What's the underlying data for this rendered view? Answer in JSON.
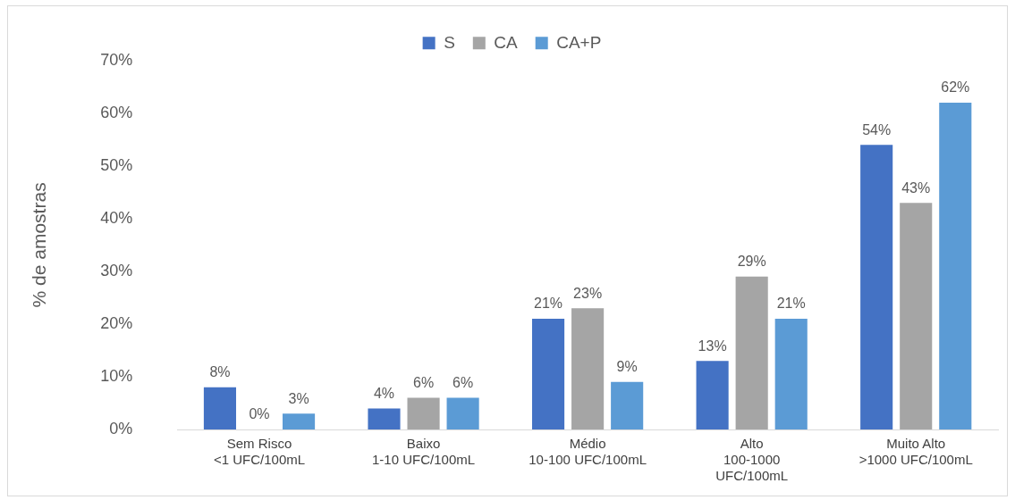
{
  "chart_data": {
    "type": "bar",
    "ylabel": "% de amostras",
    "categories": [
      "Sem Risco\n<1 UFC/100mL",
      "Baixo\n1-10 UFC/100mL",
      "Médio\n10-100 UFC/100mL",
      "Alto\n100-1000\nUFC/100mL",
      "Muito Alto\n>1000 UFC/100mL"
    ],
    "series": [
      {
        "name": "S",
        "color": "#4472c4",
        "values": [
          8,
          4,
          21,
          13,
          54
        ],
        "value_labels": [
          "8%",
          "4%",
          "21%",
          "13%",
          "54%"
        ]
      },
      {
        "name": "CA",
        "color": "#a5a5a5",
        "values": [
          0,
          6,
          23,
          29,
          43
        ],
        "value_labels": [
          "0%",
          "6%",
          "23%",
          "29%",
          "43%"
        ]
      },
      {
        "name": "CA+P",
        "color": "#5b9bd5",
        "values": [
          3,
          6,
          9,
          21,
          62
        ],
        "value_labels": [
          "3%",
          "6%",
          "9%",
          "21%",
          "62%"
        ]
      }
    ],
    "ylim": [
      0,
      70
    ],
    "yticks": [
      {
        "value": 0,
        "label": "0%"
      },
      {
        "value": 10,
        "label": "10%"
      },
      {
        "value": 20,
        "label": "20%"
      },
      {
        "value": 30,
        "label": "30%"
      },
      {
        "value": 40,
        "label": "40%"
      },
      {
        "value": 50,
        "label": "50%"
      },
      {
        "value": 60,
        "label": "60%"
      },
      {
        "value": 70,
        "label": "70%"
      }
    ],
    "grid": false,
    "legend": "top"
  }
}
